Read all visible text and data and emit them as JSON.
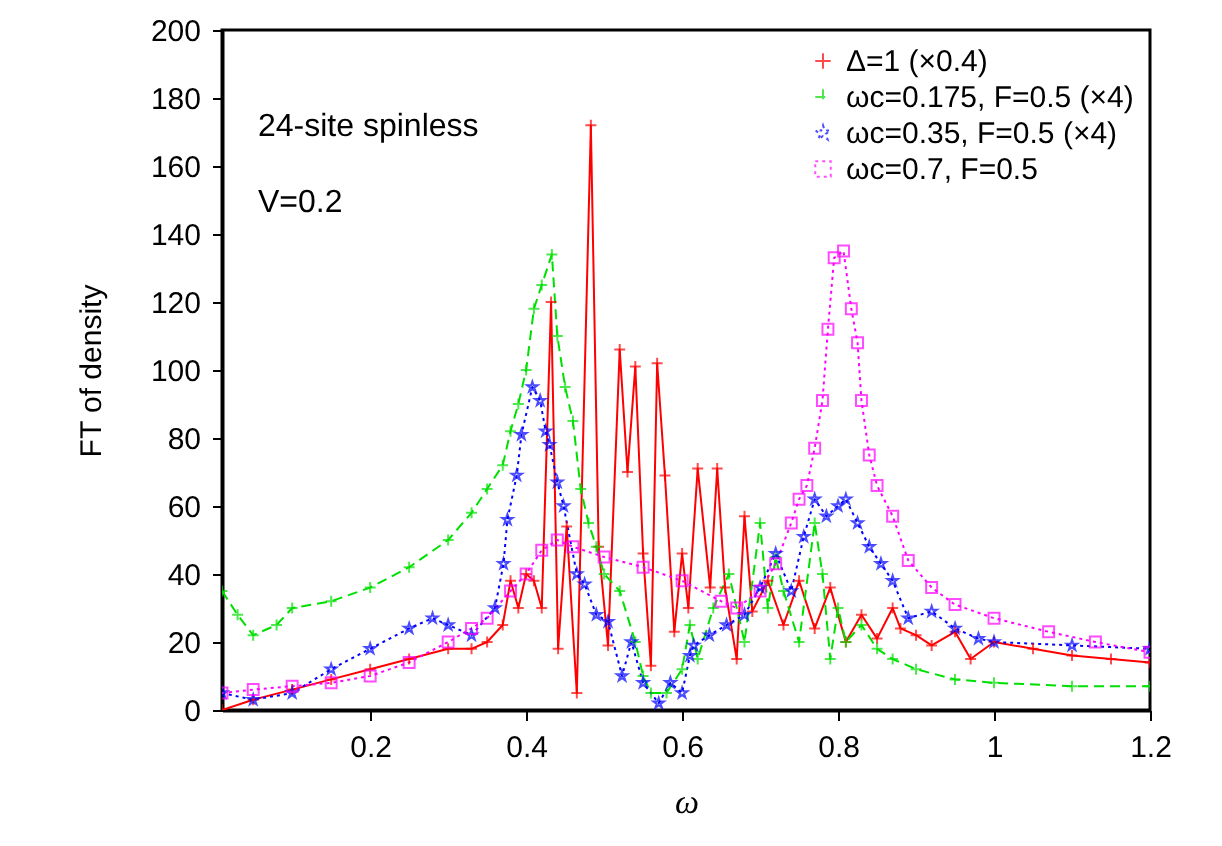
{
  "chart_data": {
    "type": "line",
    "xlabel": "ω",
    "ylabel": "FT of density",
    "xlim": [
      0.01,
      1.2
    ],
    "xticks": [
      0.2,
      0.4,
      0.6,
      0.8,
      1,
      1.2
    ],
    "ylim": [
      0,
      200
    ],
    "yticks": [
      0,
      20,
      40,
      60,
      80,
      100,
      120,
      140,
      160,
      180,
      200
    ],
    "grid": false,
    "legend": "top right",
    "annotations": [
      "24-site spinless",
      "V=0.2"
    ],
    "series": [
      {
        "name": "Δ=1 (×0.4)",
        "color": "#ff0000",
        "marker": "cross",
        "line_style": "solid",
        "x": [
          0.01,
          0.05,
          0.1,
          0.15,
          0.2,
          0.25,
          0.3,
          0.33,
          0.35,
          0.37,
          0.38,
          0.39,
          0.4,
          0.41,
          0.42,
          0.432,
          0.441,
          0.452,
          0.465,
          0.483,
          0.493,
          0.505,
          0.52,
          0.53,
          0.54,
          0.55,
          0.56,
          0.568,
          0.578,
          0.59,
          0.6,
          0.608,
          0.62,
          0.636,
          0.645,
          0.655,
          0.67,
          0.68,
          0.69,
          0.71,
          0.73,
          0.75,
          0.77,
          0.79,
          0.81,
          0.83,
          0.85,
          0.87,
          0.88,
          0.9,
          0.92,
          0.95,
          0.97,
          1.0,
          1.05,
          1.1,
          1.15,
          1.2
        ],
        "values": [
          0,
          3,
          6,
          9,
          12,
          15,
          18,
          18,
          20,
          25,
          38,
          30,
          40,
          38,
          30,
          120,
          18,
          54,
          5,
          172,
          48,
          19,
          106,
          70,
          101,
          46,
          13,
          102,
          69,
          23,
          46,
          30,
          71,
          36,
          71,
          36,
          15,
          57,
          29,
          38,
          25,
          38,
          24,
          36,
          20,
          28,
          21,
          30,
          24,
          22,
          19,
          23,
          15,
          20,
          18,
          16,
          15,
          14
        ]
      },
      {
        "name": "ωc=0.175, F=0.5 (×4)",
        "color": "#00e000",
        "marker": "cross",
        "line_style": "dashed",
        "x": [
          0.01,
          0.03,
          0.05,
          0.08,
          0.1,
          0.15,
          0.2,
          0.25,
          0.3,
          0.33,
          0.35,
          0.37,
          0.38,
          0.39,
          0.4,
          0.41,
          0.42,
          0.433,
          0.44,
          0.45,
          0.46,
          0.47,
          0.48,
          0.49,
          0.5,
          0.52,
          0.54,
          0.55,
          0.56,
          0.58,
          0.6,
          0.61,
          0.62,
          0.64,
          0.66,
          0.68,
          0.7,
          0.71,
          0.72,
          0.73,
          0.75,
          0.77,
          0.78,
          0.79,
          0.8,
          0.81,
          0.83,
          0.85,
          0.87,
          0.9,
          0.95,
          1.0,
          1.1,
          1.2
        ],
        "values": [
          35,
          28,
          22,
          25,
          30,
          32,
          36,
          42,
          50,
          58,
          65,
          72,
          82,
          90,
          100,
          118,
          125,
          134,
          110,
          95,
          85,
          65,
          55,
          48,
          40,
          35,
          20,
          10,
          5,
          5,
          12,
          25,
          15,
          30,
          40,
          20,
          55,
          30,
          45,
          35,
          20,
          55,
          40,
          15,
          30,
          20,
          25,
          18,
          15,
          12,
          9,
          8,
          7,
          7
        ]
      },
      {
        "name": "ωc=0.35, F=0.5 (×4)",
        "color": "#0000ff",
        "marker": "star",
        "line_style": "dotted",
        "x": [
          0.01,
          0.05,
          0.1,
          0.15,
          0.2,
          0.25,
          0.28,
          0.3,
          0.33,
          0.36,
          0.371,
          0.376,
          0.388,
          0.394,
          0.408,
          0.418,
          0.425,
          0.43,
          0.44,
          0.448,
          0.465,
          0.475,
          0.49,
          0.505,
          0.523,
          0.535,
          0.55,
          0.57,
          0.585,
          0.6,
          0.61,
          0.615,
          0.635,
          0.657,
          0.68,
          0.7,
          0.72,
          0.74,
          0.756,
          0.77,
          0.785,
          0.8,
          0.81,
          0.825,
          0.84,
          0.855,
          0.87,
          0.89,
          0.92,
          0.95,
          0.98,
          1.0,
          1.1,
          1.2
        ],
        "values": [
          5,
          3,
          5,
          12,
          18,
          24,
          27,
          25,
          22,
          30,
          43,
          56,
          69,
          81,
          95,
          91,
          82,
          78,
          67,
          60,
          40,
          37,
          28,
          26,
          10,
          20,
          8,
          2,
          8,
          5,
          16,
          19,
          22,
          25,
          28,
          36,
          46,
          35,
          51,
          62,
          57,
          60,
          62,
          55,
          48,
          43,
          38,
          27,
          29,
          24,
          21,
          20,
          19,
          18
        ]
      },
      {
        "name": "ωc=0.7, F=0.5",
        "color": "#ff00ff",
        "marker": "square",
        "line_style": "dotted",
        "x": [
          0.01,
          0.05,
          0.1,
          0.15,
          0.2,
          0.25,
          0.3,
          0.33,
          0.35,
          0.38,
          0.4,
          0.42,
          0.44,
          0.46,
          0.5,
          0.55,
          0.6,
          0.65,
          0.67,
          0.7,
          0.72,
          0.74,
          0.75,
          0.76,
          0.77,
          0.78,
          0.787,
          0.795,
          0.807,
          0.817,
          0.825,
          0.83,
          0.84,
          0.85,
          0.87,
          0.89,
          0.92,
          0.95,
          1.0,
          1.07,
          1.13,
          1.2
        ],
        "values": [
          5,
          6,
          7,
          8,
          10,
          14,
          20,
          24,
          27,
          35,
          40,
          47,
          50,
          48,
          45,
          42,
          38,
          32,
          30,
          35,
          43,
          55,
          62,
          66,
          77,
          91,
          112,
          133,
          135,
          118,
          108,
          91,
          75,
          66,
          57,
          44,
          36,
          31,
          27,
          23,
          20,
          17
        ]
      }
    ]
  }
}
